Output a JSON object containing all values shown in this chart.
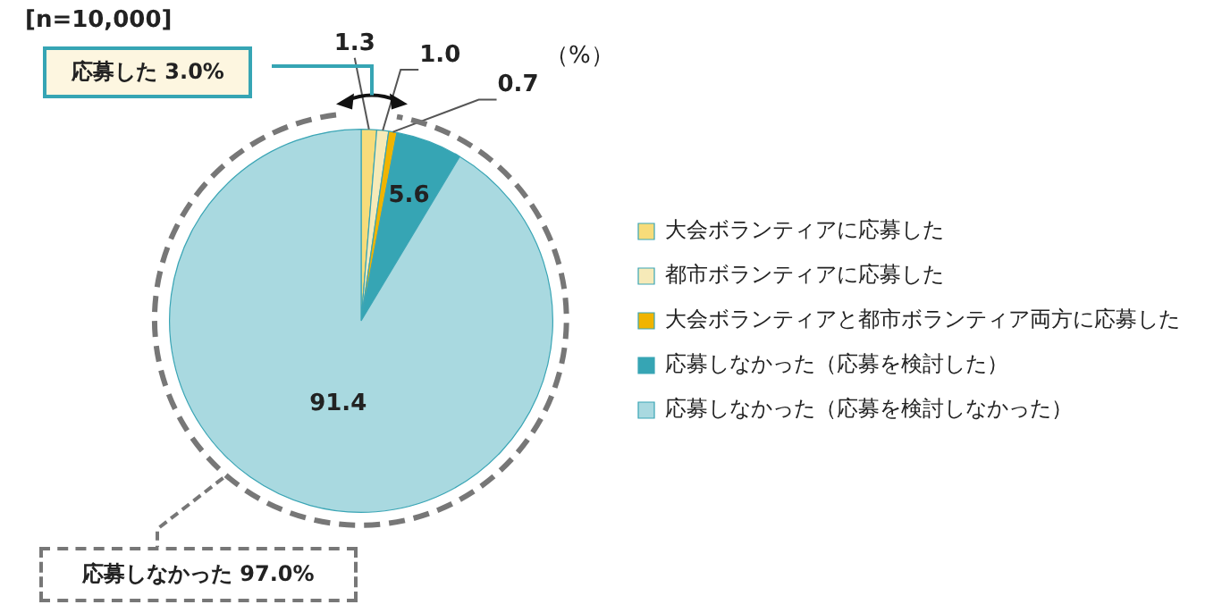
{
  "chart_data": {
    "type": "pie",
    "categories": [
      "大会ボランティアに応募した",
      "都市ボランティアに応募した",
      "大会ボランティアと都市ボランティア両方に応募した",
      "応募しなかった（応募を検討した）",
      "応募しなかった（応募を検討しなかった）"
    ],
    "values": [
      1.3,
      1.0,
      0.7,
      5.6,
      91.4
    ],
    "colors": [
      "#f7dc7a",
      "#f6eab8",
      "#f0b400",
      "#36a5b4",
      "#a9d9e0"
    ],
    "value_labels": [
      "1.3",
      "1.0",
      "0.7",
      "5.6",
      "91.4"
    ],
    "legend": "right",
    "annotations": [
      "[n=10,000]",
      "（%）",
      "応募した 3.0%",
      "応募しなかった 97.0%"
    ]
  }
}
